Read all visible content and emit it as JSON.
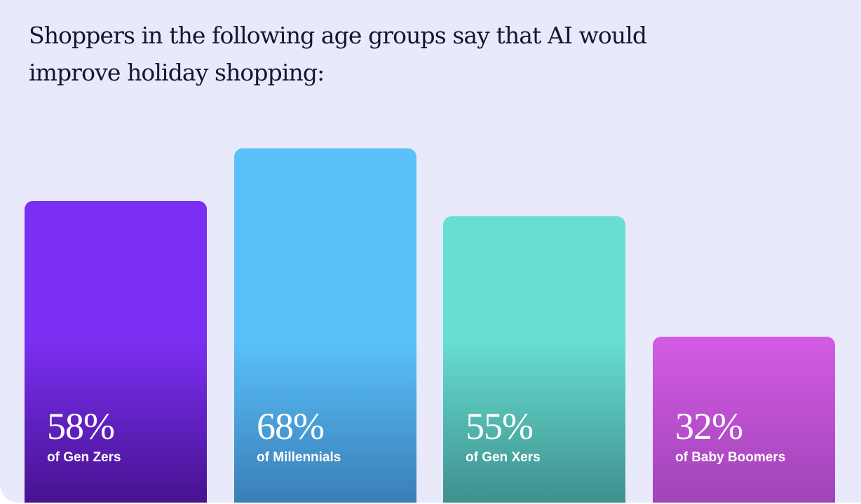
{
  "title": "Shoppers in the following age groups say that AI would improve holiday shopping:",
  "chart_data": {
    "type": "bar",
    "title": "Shoppers in the following age groups say that AI would improve holiday shopping:",
    "categories": [
      "Gen Zers",
      "Millennials",
      "Gen Xers",
      "Baby Boomers"
    ],
    "values": [
      58,
      68,
      55,
      32
    ],
    "value_labels": [
      "58%",
      "68%",
      "55%",
      "32%"
    ],
    "labels": [
      "of Gen Zers",
      "of Millennials",
      "of Gen Xers",
      "of Baby Boomers"
    ],
    "colors": [
      {
        "top": "#7b2ff2",
        "bottom": "#46128e"
      },
      {
        "top": "#5ac1fa",
        "bottom": "#3a7db6"
      },
      {
        "top": "#68ded2",
        "bottom": "#3e8f8c"
      },
      {
        "top": "#d35ae3",
        "bottom": "#a044b8"
      }
    ],
    "ylim": [
      0,
      100
    ],
    "grid": false,
    "legend": "none"
  }
}
